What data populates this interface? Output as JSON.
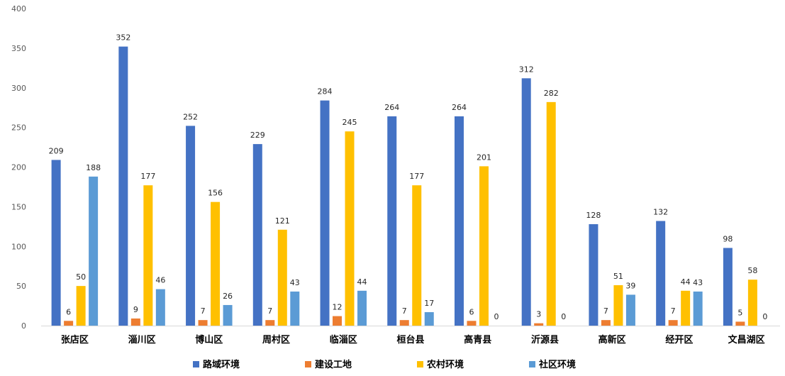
{
  "chart_data": {
    "type": "bar",
    "title": "",
    "xlabel": "",
    "ylabel": "",
    "ylim": [
      0,
      400
    ],
    "yticks": [
      0,
      50,
      100,
      150,
      200,
      250,
      300,
      350,
      400
    ],
    "grid": false,
    "legend_position": "bottom",
    "categories": [
      "张店区",
      "淄川区",
      "博山区",
      "周村区",
      "临淄区",
      "桓台县",
      "高青县",
      "沂源县",
      "高新区",
      "经开区",
      "文昌湖区"
    ],
    "series": [
      {
        "name": "路域环境",
        "color": "#4472C4",
        "values": [
          209,
          352,
          252,
          229,
          284,
          264,
          264,
          312,
          128,
          132,
          98
        ]
      },
      {
        "name": "建设工地",
        "color": "#ED7D31",
        "values": [
          6,
          9,
          7,
          7,
          12,
          7,
          6,
          3,
          7,
          7,
          5
        ]
      },
      {
        "name": "农村环境",
        "color": "#FFC000",
        "values": [
          50,
          177,
          156,
          121,
          245,
          177,
          201,
          282,
          51,
          44,
          58
        ]
      },
      {
        "name": "社区环境",
        "color": "#5B9BD5",
        "values": [
          188,
          46,
          26,
          43,
          44,
          17,
          0,
          0,
          39,
          43,
          0
        ]
      }
    ]
  }
}
